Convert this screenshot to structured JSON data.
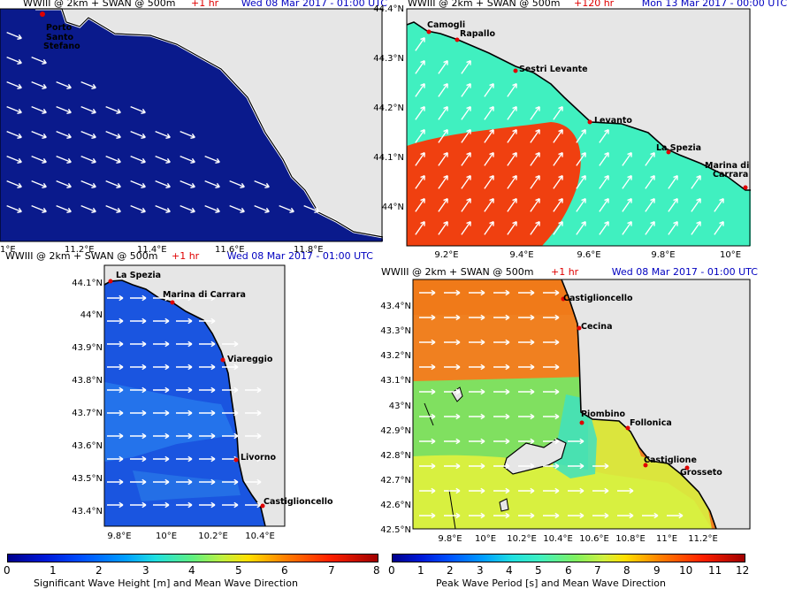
{
  "panels": [
    {
      "id": "tl",
      "header": {
        "model": "WWIII @ 2km + SWAN @ 500m",
        "lead": "+1 hr",
        "date": "Wed 08 Mar 2017 - 01:00 UTC"
      },
      "x_ticks": [
        "1°E",
        "11.2°E",
        "11.4°E",
        "11.6°E",
        "11.8°E"
      ],
      "y_ticks": [],
      "cities": [
        "Porto",
        "Santo",
        "Stefano"
      ],
      "colors": {
        "sea": "#0a1a8c",
        "land": "#e6e6e6"
      }
    },
    {
      "id": "tr",
      "header": {
        "model": "WWIII @ 2km + SWAN @ 500m",
        "lead": "+120 hr",
        "date": "Mon 13 Mar 2017 - 00:00 UTC"
      },
      "x_ticks": [
        "9.2°E",
        "9.4°E",
        "9.6°E",
        "9.8°E",
        "10°E"
      ],
      "y_ticks": [
        "44.4°N",
        "44.3°N",
        "44.2°N",
        "44.1°N",
        "44°N"
      ],
      "cities": [
        "Camogli",
        "Rapallo",
        "Sestri Levante",
        "Levanto",
        "La Spezia",
        "Marina di",
        "Carrara"
      ],
      "colors": {
        "sea": "#40f0c0",
        "hot": "#f04010",
        "land": "#e6e6e6"
      }
    },
    {
      "id": "bl",
      "header": {
        "model": "WWIII @ 2km + SWAN @ 500m",
        "lead": "+1 hr",
        "date": "Wed 08 Mar 2017 - 01:00 UTC"
      },
      "x_ticks": [
        "9.8°E",
        "10°E",
        "10.2°E",
        "10.4°E"
      ],
      "y_ticks": [
        "44.1°N",
        "44°N",
        "43.9°N",
        "43.8°N",
        "43.7°N",
        "43.6°N",
        "43.5°N",
        "43.4°N"
      ],
      "cities": [
        "La Spezia",
        "Marina di Carrara",
        "Viareggio",
        "Livorno",
        "Castiglioncello"
      ],
      "colors": {
        "sea": "#1a55e0",
        "sea_light": "#2a80f0",
        "land": "#e6e6e6"
      }
    },
    {
      "id": "br",
      "header": {
        "model": "WWIII @ 2km + SWAN @ 500m",
        "lead": "+1 hr",
        "date": "Wed 08 Mar 2017 - 01:00 UTC"
      },
      "x_ticks": [
        "9.8°E",
        "10°E",
        "10.2°E",
        "10.4°E",
        "10.6°E",
        "10.8°E",
        "11°E",
        "11.2°E"
      ],
      "y_ticks": [
        "43.4°N",
        "43.3°N",
        "43.2°N",
        "43.1°N",
        "43°N",
        "42.9°N",
        "42.8°N",
        "42.7°N",
        "42.6°N",
        "42.5°N"
      ],
      "cities": [
        "Castiglioncello",
        "Cecina",
        "Piombino",
        "Follonica",
        "Castiglione",
        "Grosseto"
      ],
      "colors": {
        "sea_top": "#f08020",
        "sea_mid": "#80e060",
        "sea_low": "#e0f040",
        "land": "#e6e6e6"
      }
    }
  ],
  "colorbars": [
    {
      "ticks": [
        "0",
        "1",
        "2",
        "3",
        "4",
        "5",
        "6",
        "7",
        "8"
      ],
      "caption": "Significant Wave Height [m] and Mean Wave Direction"
    },
    {
      "ticks": [
        "0",
        "1",
        "2",
        "3",
        "4",
        "5",
        "6",
        "7",
        "8",
        "9",
        "10",
        "11",
        "12"
      ],
      "caption": "Peak Wave Period [s] and Mean Wave Direction"
    }
  ]
}
